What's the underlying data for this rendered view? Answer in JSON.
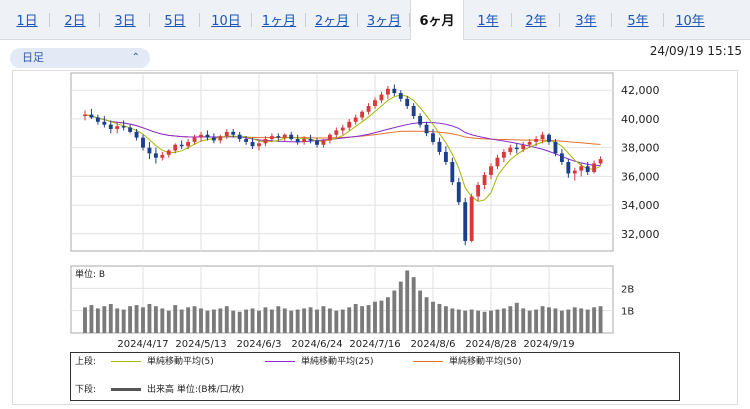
{
  "tabs": [
    "1日",
    "2日",
    "3日",
    "5日",
    "10日",
    "1ヶ月",
    "2ヶ月",
    "3ヶ月",
    "6ヶ月",
    "1年",
    "2年",
    "3年",
    "5年",
    "10年"
  ],
  "active_tab": "6ヶ月",
  "period_select": {
    "value": "日足",
    "chevron": "⌃⌄"
  },
  "timestamp": "24/09/19 15:15",
  "colors": {
    "up": "#d63a3a",
    "down": "#1b3f8c",
    "ma5": "#a3b800",
    "ma25": "#8a2bd6",
    "ma50": "#e2712a",
    "volume": "#7a7a7a"
  },
  "chart_data": {
    "type": "candlestick",
    "price_ticks": [
      "42,000",
      "40,000",
      "38,000",
      "36,000",
      "34,000",
      "32,000"
    ],
    "ylim": [
      30800,
      43200
    ],
    "x_labels": [
      "2024/4/17",
      "2024/5/13",
      "2024/6/3",
      "2024/6/24",
      "2024/7/16",
      "2024/8/6",
      "2024/8/28",
      "2024/9/19"
    ],
    "volume_unit_label": "単位: B",
    "volume_ticks": [
      "2B",
      "1B"
    ],
    "volume_ylim": [
      0,
      3.0
    ],
    "candles": [
      [
        40200,
        40600,
        39900,
        40300
      ],
      [
        40300,
        40700,
        40000,
        40100
      ],
      [
        40100,
        40300,
        39600,
        39800
      ],
      [
        39800,
        40200,
        39400,
        39600
      ],
      [
        39600,
        39900,
        39000,
        39300
      ],
      [
        39300,
        39700,
        39000,
        39500
      ],
      [
        39500,
        39900,
        39200,
        39400
      ],
      [
        39400,
        39600,
        39000,
        39100
      ],
      [
        39100,
        39300,
        38500,
        38700
      ],
      [
        38700,
        38900,
        37800,
        38000
      ],
      [
        38000,
        38400,
        37200,
        37600
      ],
      [
        37600,
        38000,
        36900,
        37300
      ],
      [
        37300,
        37700,
        37100,
        37500
      ],
      [
        37500,
        37900,
        37300,
        37800
      ],
      [
        37800,
        38300,
        37600,
        38200
      ],
      [
        38200,
        38500,
        37900,
        38100
      ],
      [
        38100,
        38600,
        37900,
        38400
      ],
      [
        38400,
        38900,
        38200,
        38700
      ],
      [
        38700,
        39100,
        38400,
        38900
      ],
      [
        38900,
        39200,
        38500,
        38700
      ],
      [
        38700,
        39000,
        38300,
        38500
      ],
      [
        38500,
        38900,
        38300,
        38800
      ],
      [
        38800,
        39300,
        38600,
        39100
      ],
      [
        39100,
        39300,
        38700,
        38900
      ],
      [
        38900,
        39100,
        38400,
        38600
      ],
      [
        38600,
        38800,
        38200,
        38400
      ],
      [
        38400,
        38700,
        37900,
        38100
      ],
      [
        38100,
        38500,
        37800,
        38300
      ],
      [
        38300,
        38800,
        38100,
        38600
      ],
      [
        38600,
        39000,
        38400,
        38800
      ],
      [
        38800,
        39000,
        38500,
        38700
      ],
      [
        38700,
        39000,
        38400,
        38900
      ],
      [
        38900,
        39100,
        38500,
        38600
      ],
      [
        38600,
        38900,
        38200,
        38400
      ],
      [
        38400,
        38800,
        38200,
        38600
      ],
      [
        38600,
        38900,
        38300,
        38500
      ],
      [
        38500,
        38700,
        38000,
        38200
      ],
      [
        38200,
        38600,
        38000,
        38500
      ],
      [
        38500,
        39000,
        38300,
        38900
      ],
      [
        38900,
        39400,
        38700,
        39200
      ],
      [
        39200,
        39600,
        38900,
        39400
      ],
      [
        39400,
        40000,
        39200,
        39800
      ],
      [
        39800,
        40300,
        39600,
        40100
      ],
      [
        40100,
        40600,
        39900,
        40500
      ],
      [
        40500,
        41100,
        40300,
        40900
      ],
      [
        40900,
        41500,
        40700,
        41300
      ],
      [
        41300,
        41900,
        41100,
        41700
      ],
      [
        41700,
        42300,
        41400,
        42100
      ],
      [
        42100,
        42400,
        41600,
        41800
      ],
      [
        41800,
        42000,
        41200,
        41400
      ],
      [
        41400,
        41600,
        40700,
        40900
      ],
      [
        40900,
        41100,
        40000,
        40200
      ],
      [
        40200,
        40400,
        39400,
        39600
      ],
      [
        39600,
        39800,
        38800,
        39000
      ],
      [
        39000,
        39300,
        38200,
        38400
      ],
      [
        38400,
        38700,
        37500,
        37700
      ],
      [
        37700,
        38100,
        36800,
        37000
      ],
      [
        37000,
        37300,
        35400,
        35600
      ],
      [
        35600,
        35900,
        34000,
        34200
      ],
      [
        34200,
        34500,
        31200,
        31500
      ],
      [
        31500,
        34800,
        31400,
        34600
      ],
      [
        34600,
        35600,
        34300,
        35400
      ],
      [
        35400,
        36300,
        35100,
        36100
      ],
      [
        36100,
        36900,
        35800,
        36700
      ],
      [
        36700,
        37500,
        36500,
        37300
      ],
      [
        37300,
        37900,
        37000,
        37700
      ],
      [
        37700,
        38200,
        37500,
        38000
      ],
      [
        38000,
        38300,
        37600,
        37900
      ],
      [
        37900,
        38400,
        37700,
        38200
      ],
      [
        38200,
        38600,
        38000,
        38400
      ],
      [
        38400,
        38800,
        38100,
        38600
      ],
      [
        38600,
        39100,
        38300,
        38900
      ],
      [
        38900,
        39000,
        38200,
        38400
      ],
      [
        38400,
        38600,
        37400,
        37600
      ],
      [
        37600,
        37900,
        36800,
        37000
      ],
      [
        37000,
        37200,
        35900,
        36200
      ],
      [
        36200,
        36600,
        35700,
        36400
      ],
      [
        36400,
        36900,
        36000,
        36700
      ],
      [
        36700,
        37000,
        36100,
        36300
      ],
      [
        36300,
        37100,
        36200,
        36900
      ],
      [
        36900,
        37400,
        36800,
        37200
      ]
    ],
    "volume": [
      1.15,
      1.25,
      1.1,
      1.2,
      1.3,
      1.1,
      1.05,
      1.2,
      1.25,
      1.15,
      1.3,
      1.2,
      1.1,
      1.0,
      1.25,
      1.05,
      1.15,
      1.2,
      1.1,
      1.0,
      1.05,
      1.1,
      1.2,
      1.0,
      0.95,
      1.05,
      1.1,
      1.0,
      1.15,
      1.05,
      1.2,
      1.1,
      1.0,
      1.05,
      1.1,
      1.15,
      1.05,
      1.2,
      1.1,
      1.0,
      1.05,
      1.15,
      1.3,
      1.2,
      1.25,
      1.4,
      1.45,
      1.6,
      1.9,
      2.3,
      2.8,
      2.5,
      1.9,
      1.6,
      1.4,
      1.3,
      1.2,
      1.1,
      1.05,
      1.0,
      1.05,
      1.0,
      0.95,
      1.0,
      1.05,
      1.1,
      1.2,
      1.35,
      1.1,
      1.0,
      1.05,
      1.2,
      1.15,
      1.1,
      1.0,
      1.05,
      1.15,
      1.1,
      1.05,
      1.15,
      1.2
    ],
    "series": [
      {
        "name": "単純移動平均(5)"
      },
      {
        "name": "単純移動平均(25)"
      },
      {
        "name": "単純移動平均(50)"
      }
    ]
  },
  "legend": {
    "upper_label": "上段:",
    "ma5": "単純移動平均(5)",
    "ma25": "単純移動平均(25)",
    "ma50": "単純移動平均(50)",
    "lower_label": "下段:",
    "volume": "出来高 単位:(B株/口/枚)"
  }
}
